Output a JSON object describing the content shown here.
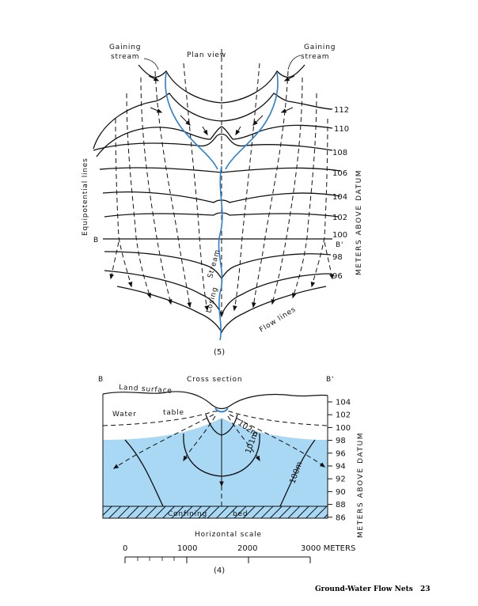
{
  "plan_view": {
    "title": "Plan view",
    "gaining_left": [
      "Gaining",
      "stream"
    ],
    "gaining_right": [
      "Gaining",
      "stream"
    ],
    "equipotential_label": "Equipotential lines",
    "flow_lines_label": "Flow lines",
    "losing_label": "Losing",
    "stream_label": "Stream",
    "section_left": "B",
    "section_right": "B'",
    "contours": [
      {
        "value": "112",
        "label": "112"
      },
      {
        "value": "110",
        "label": "110"
      },
      {
        "value": "108",
        "label": "108"
      },
      {
        "value": "106",
        "label": "106"
      },
      {
        "value": "104",
        "label": "104"
      },
      {
        "value": "102",
        "label": "102"
      },
      {
        "value": "100",
        "label": "100"
      },
      {
        "value": "98",
        "label": "98"
      },
      {
        "value": "96",
        "label": "96"
      }
    ],
    "axis_title": "METERS ABOVE DATUM",
    "caption": "(5)"
  },
  "cross_section": {
    "title": "Cross section",
    "left": "B",
    "right": "B'",
    "land_surface": "Land surface",
    "water_word": "Water",
    "table_word": "table",
    "labels_102": "102m",
    "labels_101": "101m",
    "labels_100": "100m",
    "confining": "Confining",
    "bed": "bed",
    "ticks": [
      "104",
      "102",
      "100",
      "98",
      "96",
      "94",
      "92",
      "90",
      "88",
      "86"
    ],
    "axis_title": "METERS ABOVE DATUM",
    "colors": {
      "water": "#a9d8f5",
      "stream": "#2a7fd4",
      "ink": "#111111"
    }
  },
  "scale": {
    "title": "Horizontal scale",
    "labels": [
      "0",
      "1000",
      "2000",
      "3000 METERS"
    ],
    "caption": "(4)"
  },
  "footer": {
    "title": "Ground-Water Flow Nets",
    "page": "23"
  }
}
